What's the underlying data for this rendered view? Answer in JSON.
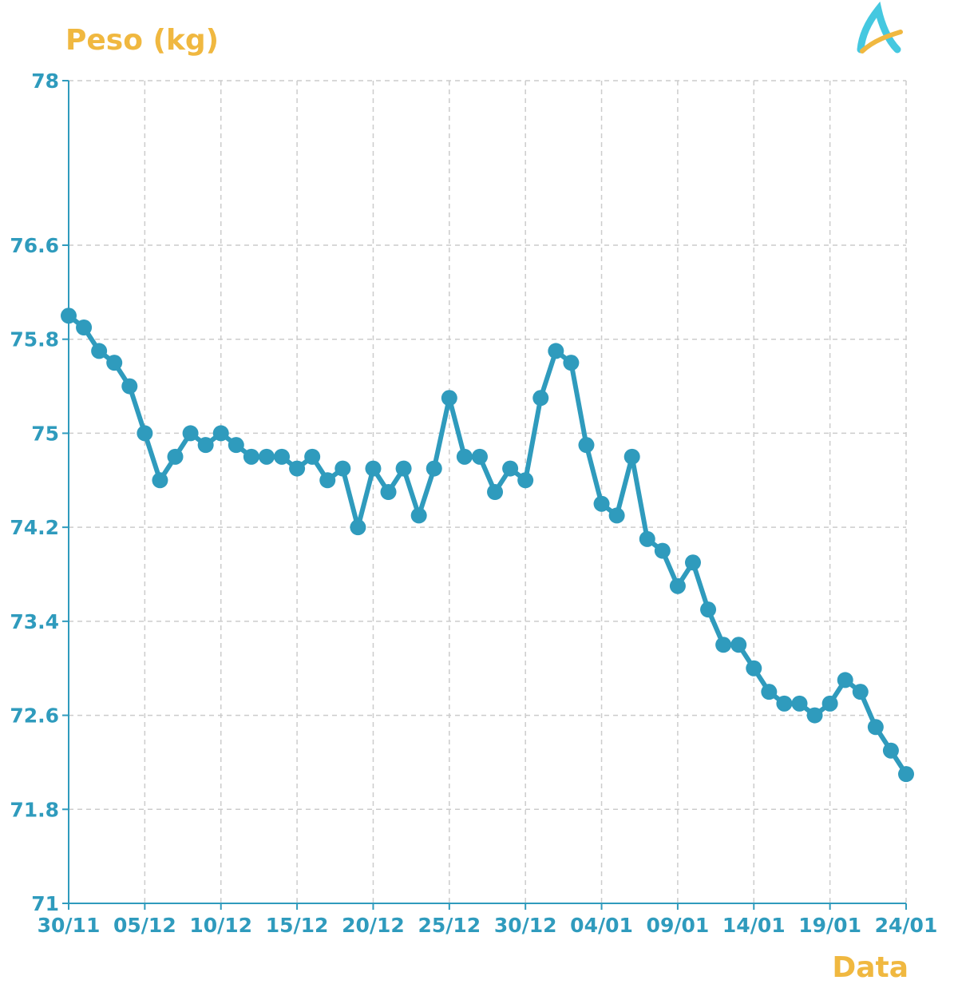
{
  "chart_data": {
    "type": "line",
    "ylabel": "Peso (kg)",
    "xlabel": "Data",
    "ylim": [
      71,
      78
    ],
    "yticks": [
      "71",
      "71.8",
      "72.6",
      "73.4",
      "74.2",
      "75",
      "75.8",
      "76.6",
      "78"
    ],
    "xticks": [
      "30/11",
      "05/12",
      "10/12",
      "15/12",
      "20/12",
      "25/12",
      "30/12",
      "04/01",
      "09/01",
      "14/01",
      "19/01",
      "24/01"
    ],
    "x_range": [
      "30/11",
      "24/01"
    ],
    "grid": true,
    "series": [
      {
        "values": [
          76.0,
          75.9,
          75.7,
          75.6,
          75.4,
          75.0,
          74.6,
          74.8,
          75.0,
          74.9,
          75.0,
          74.9,
          74.8,
          74.8,
          74.8,
          74.7,
          74.8,
          74.6,
          74.7,
          74.2,
          74.7,
          74.5,
          74.7,
          74.3,
          74.7,
          75.3,
          74.8,
          74.8,
          74.5,
          74.7,
          74.6,
          75.3,
          75.7,
          75.6,
          74.9,
          74.4,
          74.3,
          74.8,
          74.1,
          74.0,
          73.7,
          73.9,
          73.5,
          73.2,
          73.2,
          73.0,
          72.8,
          72.7,
          72.7,
          72.6,
          72.7,
          72.9,
          72.8,
          72.5,
          72.3,
          72.1
        ],
        "x_note_daily_from": "30/11"
      }
    ],
    "colors": {
      "line": "#2f9bbd",
      "axis": "#2f9bbd",
      "labels": "#f0b840",
      "grid": "#cccccc"
    }
  },
  "logo": {
    "icon": "logo-letter-a",
    "text": "A"
  }
}
